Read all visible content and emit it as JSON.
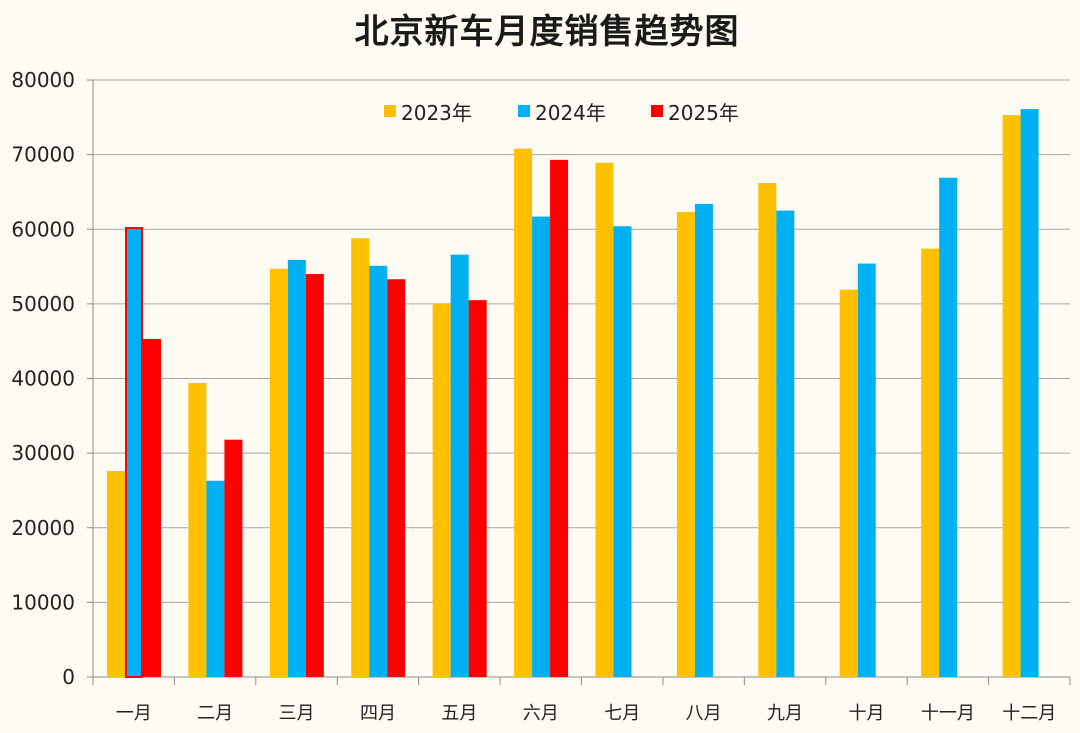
{
  "chart_data": {
    "type": "bar",
    "title": "北京新车月度销售趋势图",
    "xlabel": "",
    "ylabel": "",
    "ylim": [
      0,
      80000
    ],
    "yticks": [
      0,
      10000,
      20000,
      30000,
      40000,
      50000,
      60000,
      70000,
      80000
    ],
    "grid": true,
    "legend_position": "top-center",
    "categories": [
      "一月",
      "二月",
      "三月",
      "四月",
      "五月",
      "六月",
      "七月",
      "八月",
      "九月",
      "十月",
      "十一月",
      "十二月"
    ],
    "series": [
      {
        "name": "2023年",
        "color": "#ffc000",
        "values": [
          27600,
          39400,
          54700,
          58800,
          50000,
          70800,
          68900,
          62300,
          66200,
          51900,
          57400,
          75300
        ]
      },
      {
        "name": "2024年",
        "color": "#00b0f0",
        "values": [
          60300,
          26300,
          55900,
          55100,
          56600,
          61700,
          60400,
          63400,
          62500,
          55400,
          66900,
          76100
        ]
      },
      {
        "name": "2025年",
        "color": "#ff0000",
        "values": [
          45300,
          31800,
          54000,
          53300,
          50500,
          69300,
          null,
          null,
          null,
          null,
          null,
          null
        ]
      }
    ]
  }
}
